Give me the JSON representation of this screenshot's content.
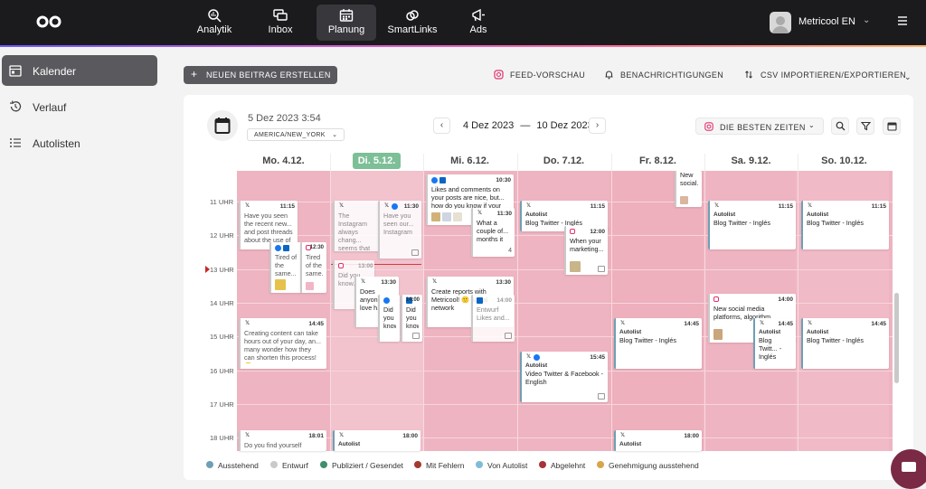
{
  "nav": {
    "items": [
      {
        "label": "Analytik",
        "icon": "analytics-icon"
      },
      {
        "label": "Inbox",
        "icon": "inbox-icon"
      },
      {
        "label": "Planung",
        "icon": "calendar-icon",
        "active": true
      },
      {
        "label": "SmartLinks",
        "icon": "link-icon"
      },
      {
        "label": "Ads",
        "icon": "megaphone-icon"
      }
    ],
    "user": "Metricool EN"
  },
  "sidebar": {
    "items": [
      {
        "label": "Kalender",
        "icon": "calendar-icon",
        "active": true
      },
      {
        "label": "Verlauf",
        "icon": "history-icon"
      },
      {
        "label": "Autolisten",
        "icon": "list-icon"
      }
    ]
  },
  "toolbar": {
    "create": "NEUEN BEITRAG ERSTELLEN",
    "feed": "FEED-VORSCHAU",
    "notifications": "BENACHRICHTIGUNGEN",
    "csv": "CSV IMPORTIEREN/EXPORTIEREN"
  },
  "calendar": {
    "now": "5 Dez 2023 3:54",
    "timezone": "AMERICA/NEW_YORK",
    "range_start": "4 Dez 2023",
    "range_sep": "—",
    "range_end": "10 Dez 2023",
    "best_times": "DIE BESTEN ZEITEN",
    "days": [
      "Mo. 4.12.",
      "Di. 5.12.",
      "Mi. 6.12.",
      "Do. 7.12.",
      "Fr. 8.12.",
      "Sa. 9.12.",
      "So. 10.12."
    ],
    "today_index": 1,
    "hours": [
      "11 UHR",
      "12 UHR",
      "13 UHR",
      "14 UHR",
      "15 UHR",
      "16 UHR",
      "17 UHR",
      "18 UHR"
    ]
  },
  "posts": {
    "mon1": {
      "time": "11:15",
      "text": "Have you seen the recent new... and post threads about the use of"
    },
    "mon2": {
      "time": "",
      "text": "Tired of the same..."
    },
    "mon3": {
      "time": "12:30",
      "text": "Tired of the same..."
    },
    "mon4": {
      "time": "14:45",
      "text": "Creating content can take hours out of your day, an... many wonder how they can shorten this process! 🙂"
    },
    "mon5": {
      "time": "18:01",
      "text": "Do you find yourself"
    },
    "tue1": {
      "time": "",
      "text": "The Instagram always chang... seems that ev... trying to keep"
    },
    "tue2": {
      "time": "11:30",
      "text": "Have you seen our... Instagram"
    },
    "tue3": {
      "time": "13:00",
      "text": "Did you know..."
    },
    "tue4": {
      "time": "13:30",
      "text": "Does anyon... love h..."
    },
    "tue5": {
      "time": "",
      "text": "Did you know"
    },
    "tue6": {
      "time": "14:00",
      "text": "Did you know"
    },
    "tue7": {
      "time": "18:00",
      "autolist": "Autolist"
    },
    "wed1": {
      "time": "10:30",
      "text": "Likes and comments on your posts are nice, but... how do you know if your"
    },
    "wed2": {
      "time": "11:30",
      "text": "What a couple of... months it",
      "count": "4"
    },
    "wed3": {
      "time": "13:30",
      "text": "Create reports with Metricool! 🙂 social network"
    },
    "wed4": {
      "time": "14:00",
      "text": "Entwurf Likes and..."
    },
    "thu1": {
      "time": "11:15",
      "autolist": "Autolist",
      "text": "Blog Twitter - Inglés"
    },
    "thu2": {
      "time": "12:00",
      "text": "When your marketing..."
    },
    "thu3": {
      "time": "15:45",
      "autolist": "Autolist",
      "text": "Video Twitter & Facebook - English"
    },
    "fri1": {
      "time": "",
      "text": "New social..."
    },
    "fri2": {
      "time": "14:45",
      "autolist": "Autolist",
      "text": "Blog Twitter - Inglés"
    },
    "fri3": {
      "time": "18:00",
      "autolist": "Autolist"
    },
    "sat1": {
      "time": "11:15",
      "autolist": "Autolist",
      "text": "Blog Twitter - Inglés"
    },
    "sat2": {
      "time": "14:00",
      "text": "New social media platforms, algorithm..."
    },
    "sat3": {
      "time": "14:45",
      "autolist": "Autolist",
      "text": "Blog Twitt... - Inglés"
    },
    "sun1": {
      "time": "11:15",
      "autolist": "Autolist",
      "text": "Blog Twitter - Inglés"
    },
    "sun2": {
      "time": "14:45",
      "autolist": "Autolist",
      "text": "Blog Twitter - Inglés"
    }
  },
  "legend": [
    {
      "label": "Ausstehend",
      "color": "#6f9fb4"
    },
    {
      "label": "Entwurf",
      "color": "#c9c9c9"
    },
    {
      "label": "Publiziert / Gesendet",
      "color": "#3f8f6b"
    },
    {
      "label": "Mit Fehlern",
      "color": "#a33a2e"
    },
    {
      "label": "Von Autolist",
      "color": "#7fbcd6"
    },
    {
      "label": "Abgelehnt",
      "color": "#a8323a"
    },
    {
      "label": "Genehmigung ausstehend",
      "color": "#d7a54a"
    }
  ]
}
